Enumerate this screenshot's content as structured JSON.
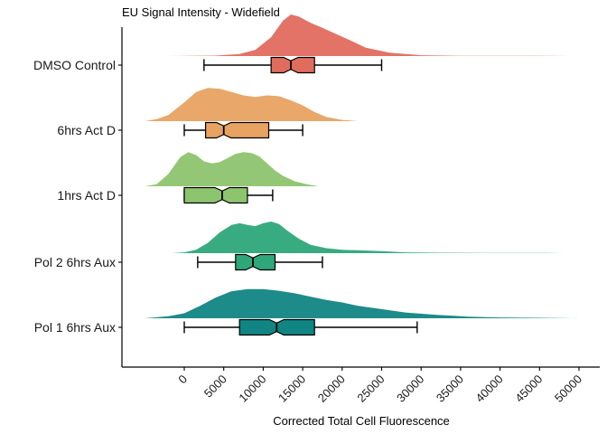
{
  "chart_data": {
    "type": "raincloud",
    "title": "EU Signal Intensity - Widefield",
    "xlabel": "Corrected Total Cell Fluorescence",
    "ylabel": "",
    "xlim": [
      -7800,
      52000
    ],
    "xticks": [
      0,
      5000,
      10000,
      15000,
      20000,
      25000,
      30000,
      35000,
      40000,
      45000,
      50000
    ],
    "grid": false,
    "legend": "none",
    "series": [
      {
        "name": "DMSO Control",
        "color": "#E06C5E",
        "box": {
          "whisker_low": 2500,
          "q1": 11000,
          "median": 13500,
          "q3": 16500,
          "whisker_high": 25000
        },
        "density_range": [
          -2000,
          49000
        ],
        "density": [
          [
            -2000,
            0
          ],
          [
            4000,
            0.01
          ],
          [
            7000,
            0.05
          ],
          [
            9000,
            0.15
          ],
          [
            11000,
            0.45
          ],
          [
            12500,
            0.85
          ],
          [
            13500,
            1.0
          ],
          [
            14500,
            0.95
          ],
          [
            16000,
            0.8
          ],
          [
            17500,
            0.68
          ],
          [
            19000,
            0.55
          ],
          [
            21000,
            0.38
          ],
          [
            23000,
            0.2
          ],
          [
            26000,
            0.08
          ],
          [
            30000,
            0.02
          ],
          [
            35000,
            0.005
          ],
          [
            40000,
            0.004
          ],
          [
            45000,
            0.005
          ],
          [
            49000,
            0
          ]
        ]
      },
      {
        "name": "6hrs Act D",
        "color": "#E8A262",
        "box": {
          "whisker_low": 0,
          "q1": 2700,
          "median": 5000,
          "q3": 10700,
          "whisker_high": 15000
        },
        "density_range": [
          -5000,
          22000
        ],
        "density": [
          [
            -5000,
            0
          ],
          [
            -3500,
            0.05
          ],
          [
            -2000,
            0.15
          ],
          [
            0,
            0.45
          ],
          [
            1500,
            0.7
          ],
          [
            3000,
            0.8
          ],
          [
            4500,
            0.78
          ],
          [
            6000,
            0.7
          ],
          [
            7500,
            0.62
          ],
          [
            9000,
            0.58
          ],
          [
            10500,
            0.62
          ],
          [
            12000,
            0.6
          ],
          [
            13500,
            0.5
          ],
          [
            15000,
            0.38
          ],
          [
            16500,
            0.22
          ],
          [
            18000,
            0.1
          ],
          [
            20000,
            0.03
          ],
          [
            22000,
            0
          ]
        ]
      },
      {
        "name": "1hrs Act D",
        "color": "#8DC46E",
        "box": {
          "whisker_low": 0,
          "q1": 0,
          "median": 4800,
          "q3": 8000,
          "whisker_high": 11200
        },
        "density_range": [
          -5000,
          17000
        ],
        "density": [
          [
            -5000,
            0
          ],
          [
            -3500,
            0.05
          ],
          [
            -2000,
            0.3
          ],
          [
            -500,
            0.7
          ],
          [
            500,
            0.82
          ],
          [
            1500,
            0.75
          ],
          [
            2500,
            0.6
          ],
          [
            3500,
            0.55
          ],
          [
            4500,
            0.58
          ],
          [
            5500,
            0.68
          ],
          [
            6500,
            0.78
          ],
          [
            7500,
            0.82
          ],
          [
            8500,
            0.8
          ],
          [
            9500,
            0.72
          ],
          [
            10500,
            0.55
          ],
          [
            11500,
            0.38
          ],
          [
            12500,
            0.25
          ],
          [
            14000,
            0.12
          ],
          [
            15500,
            0.05
          ],
          [
            17000,
            0
          ]
        ]
      },
      {
        "name": "Pol 2 6hrs Aux",
        "color": "#2EA77A",
        "box": {
          "whisker_low": 1700,
          "q1": 6500,
          "median": 8700,
          "q3": 11500,
          "whisker_high": 17500
        },
        "density_range": [
          -1500,
          48000
        ],
        "density": [
          [
            -1500,
            0
          ],
          [
            0,
            0.02
          ],
          [
            1500,
            0.08
          ],
          [
            3000,
            0.25
          ],
          [
            4500,
            0.5
          ],
          [
            6000,
            0.68
          ],
          [
            7000,
            0.72
          ],
          [
            8000,
            0.68
          ],
          [
            9000,
            0.65
          ],
          [
            10000,
            0.72
          ],
          [
            11000,
            0.76
          ],
          [
            12000,
            0.7
          ],
          [
            13000,
            0.55
          ],
          [
            14500,
            0.35
          ],
          [
            16000,
            0.2
          ],
          [
            18000,
            0.12
          ],
          [
            20000,
            0.08
          ],
          [
            22000,
            0.07
          ],
          [
            25000,
            0.05
          ],
          [
            28000,
            0.02
          ],
          [
            32000,
            0.01
          ],
          [
            38000,
            0.005
          ],
          [
            44000,
            0.006
          ],
          [
            46000,
            0.004
          ],
          [
            48000,
            0
          ]
        ]
      },
      {
        "name": "Pol 1 6hrs Aux",
        "color": "#118583",
        "box": {
          "whisker_low": 0,
          "q1": 7000,
          "median": 11700,
          "q3": 16500,
          "whisker_high": 29500
        },
        "density_range": [
          -5000,
          50000
        ],
        "density": [
          [
            -5000,
            0
          ],
          [
            -2000,
            0.05
          ],
          [
            0,
            0.12
          ],
          [
            2000,
            0.3
          ],
          [
            4000,
            0.5
          ],
          [
            6000,
            0.65
          ],
          [
            8000,
            0.7
          ],
          [
            10000,
            0.7
          ],
          [
            12000,
            0.66
          ],
          [
            14000,
            0.6
          ],
          [
            16000,
            0.52
          ],
          [
            18000,
            0.44
          ],
          [
            20000,
            0.38
          ],
          [
            22000,
            0.3
          ],
          [
            25000,
            0.22
          ],
          [
            28000,
            0.14
          ],
          [
            32000,
            0.08
          ],
          [
            36000,
            0.04
          ],
          [
            40000,
            0.02
          ],
          [
            45000,
            0.01
          ],
          [
            50000,
            0
          ]
        ]
      }
    ]
  }
}
